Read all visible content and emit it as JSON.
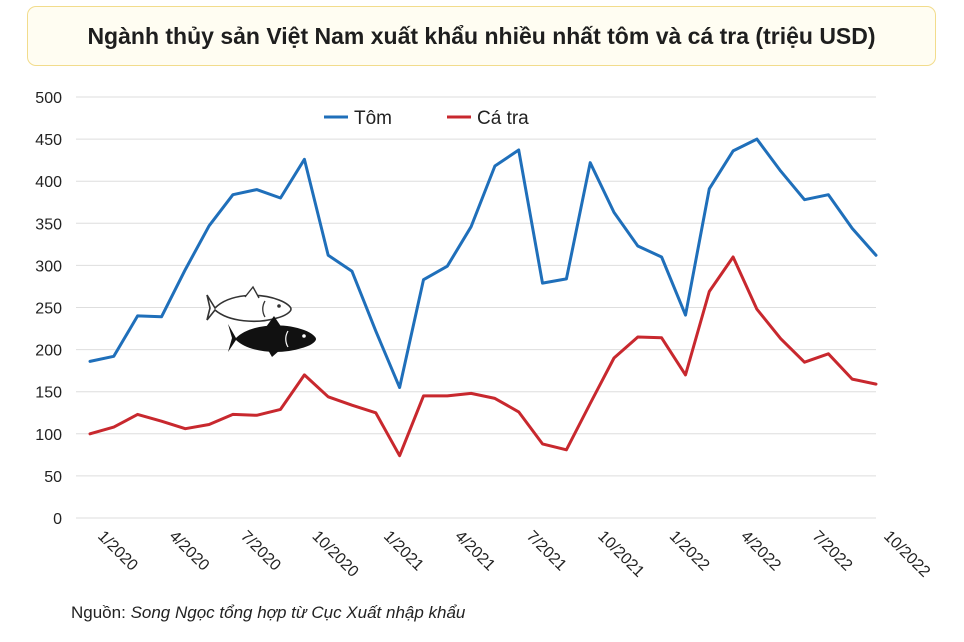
{
  "title": "Ngành thủy sản Việt Nam xuất khẩu nhiều nhất tôm và cá tra (triệu USD)",
  "source": {
    "label": "Nguồn:",
    "text": "Song Ngọc tổng hợp từ Cục Xuất nhập khẩu"
  },
  "icons": [
    "fish-outline-icon",
    "fish-solid-icon"
  ],
  "chart_data": {
    "type": "line",
    "ylim": [
      0,
      500
    ],
    "yticks": [
      0,
      50,
      100,
      150,
      200,
      250,
      300,
      350,
      400,
      450,
      500
    ],
    "grid": "horizontal",
    "legend_position": "top-center",
    "x": [
      "1/2020",
      "2/2020",
      "3/2020",
      "4/2020",
      "5/2020",
      "6/2020",
      "7/2020",
      "8/2020",
      "9/2020",
      "10/2020",
      "11/2020",
      "12/2020",
      "1/2021",
      "2/2021",
      "3/2021",
      "4/2021",
      "5/2021",
      "6/2021",
      "7/2021",
      "8/2021",
      "9/2021",
      "10/2021",
      "11/2021",
      "12/2021",
      "1/2022",
      "2/2022",
      "3/2022",
      "4/2022",
      "5/2022",
      "6/2022",
      "7/2022",
      "8/2022",
      "9/2022",
      "10/2022"
    ],
    "xtick_labels": [
      "1/2020",
      "4/2020",
      "7/2020",
      "10/2020",
      "1/2021",
      "4/2021",
      "7/2021",
      "10/2021",
      "1/2022",
      "4/2022",
      "7/2022",
      "10/2022"
    ],
    "series": [
      {
        "name": "Tôm",
        "color": "#1f6fba",
        "values": [
          186,
          192,
          240,
          239,
          295,
          347,
          384,
          390,
          380,
          426,
          312,
          293,
          222,
          155,
          283,
          299,
          346,
          418,
          437,
          279,
          284,
          422,
          363,
          323,
          310,
          241,
          391,
          436,
          450,
          412,
          378,
          384,
          344,
          312
        ]
      },
      {
        "name": "Cá tra",
        "color": "#c8282e",
        "values": [
          100,
          108,
          123,
          115,
          106,
          111,
          123,
          122,
          129,
          170,
          144,
          134,
          125,
          74,
          145,
          145,
          148,
          142,
          126,
          88,
          81,
          136,
          190,
          215,
          214,
          170,
          269,
          310,
          248,
          213,
          185,
          195,
          165,
          159
        ]
      }
    ]
  }
}
